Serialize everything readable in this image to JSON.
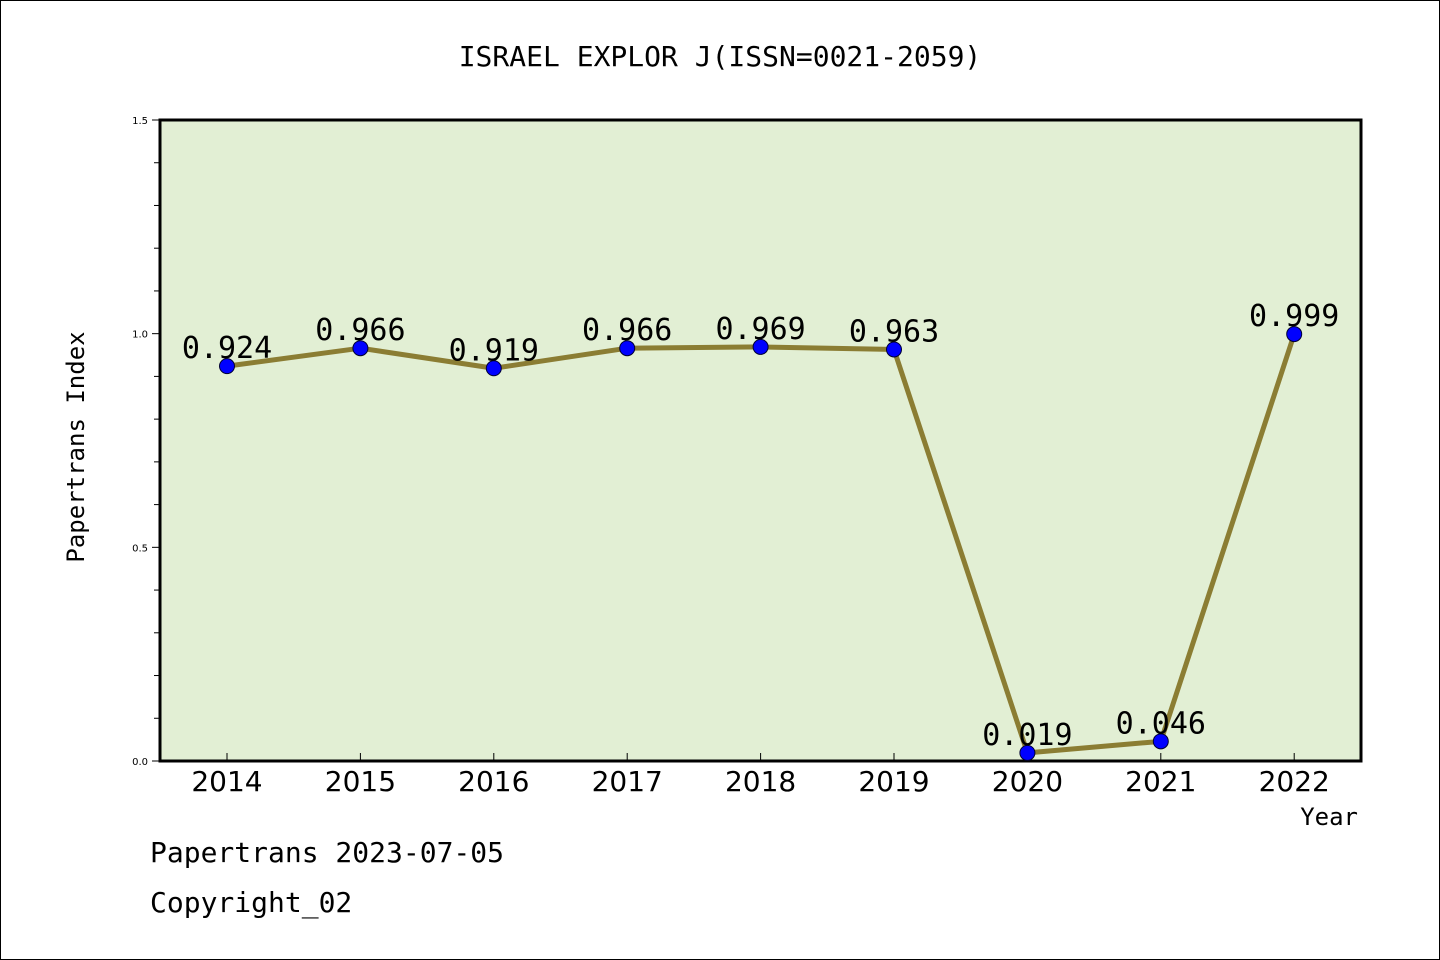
{
  "chart_data": {
    "type": "line",
    "title": "ISRAEL EXPLOR J(ISSN=0021-2059)",
    "xlabel": "Year",
    "ylabel": "Papertrans Index",
    "categories": [
      "2014",
      "2015",
      "2016",
      "2017",
      "2018",
      "2019",
      "2020",
      "2021",
      "2022"
    ],
    "values": [
      0.924,
      0.966,
      0.919,
      0.966,
      0.969,
      0.963,
      0.019,
      0.046,
      0.999
    ],
    "data_labels": [
      "0.924",
      "0.966",
      "0.919",
      "0.966",
      "0.969",
      "0.963",
      "0.019",
      "0.046",
      "0.999"
    ],
    "ylim": [
      0.0,
      1.5
    ],
    "yticks": [
      0.0,
      0.5,
      1.0,
      1.5
    ],
    "ytick_labels": [
      "0.0",
      "0.5",
      "1.0",
      "1.5"
    ],
    "grid": false,
    "colors": {
      "plot_background": "#e2efd4",
      "line": "#8b7d33",
      "marker": "#0000ff"
    }
  },
  "footer": {
    "line1": "Papertrans 2023-07-05",
    "line2": "Copyright_02"
  }
}
